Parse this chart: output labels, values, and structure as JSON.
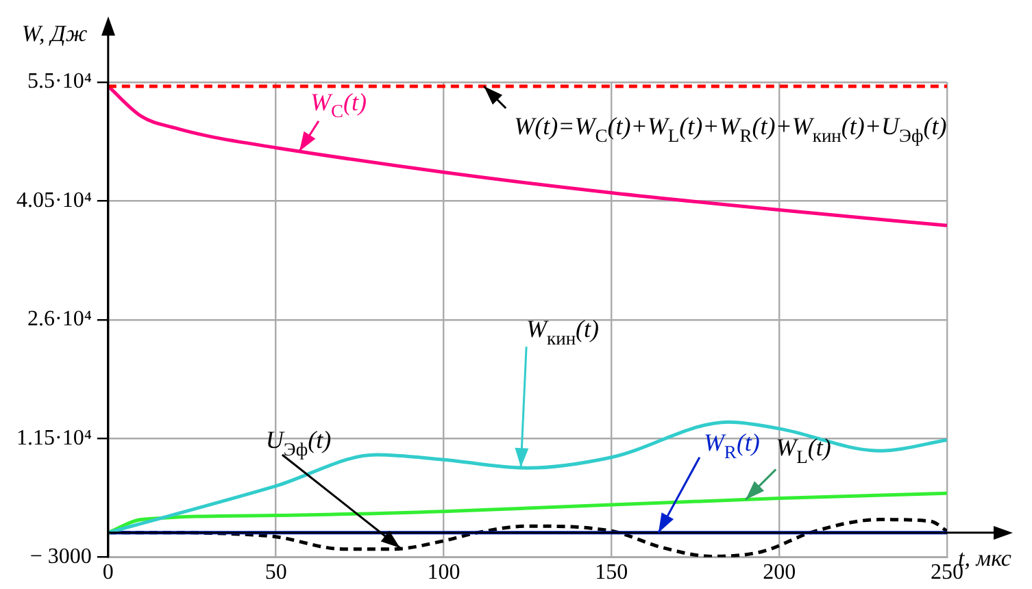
{
  "chart_data": {
    "type": "line",
    "xlabel": "t, мкс",
    "ylabel": "W, Дж",
    "xlim": [
      0,
      250
    ],
    "ylim": [
      -3000,
      55000
    ],
    "xticks": [
      0,
      50,
      100,
      150,
      200,
      250
    ],
    "yticks": [
      {
        "value": -3000,
        "label": "− 3000"
      },
      {
        "value": 11500,
        "label": "1.15·10⁴"
      },
      {
        "value": 26000,
        "label": "2.6·10⁴"
      },
      {
        "value": 40500,
        "label": "4.05·10⁴"
      },
      {
        "value": 55000,
        "label": "5.5·10⁴"
      }
    ],
    "grid": true,
    "legend": false,
    "marker": "none",
    "series": [
      {
        "name": "W(t)=W$_{C}$(t)+W$_{L}$(t)+W$_{R}$(t)+W$_{кин}$(t)+U$_{Эф}$(t)",
        "color": "#ff0000",
        "line_style": "dashed",
        "x": [
          0,
          250
        ],
        "values": [
          54500,
          54500
        ]
      },
      {
        "name": "W$_{C}$(t)",
        "color": "#ff0080",
        "line_style": "solid",
        "x": [
          0,
          10,
          20,
          30,
          50,
          100,
          150,
          200,
          250
        ],
        "values": [
          54500,
          50800,
          49400,
          48400,
          47000,
          44000,
          41500,
          39400,
          37500
        ]
      },
      {
        "name": "W$_{кин}$(t)",
        "color": "#33cccc",
        "line_style": "solid",
        "x": [
          0,
          50,
          80,
          100,
          125,
          150,
          185,
          200,
          230,
          250
        ],
        "values": [
          0,
          5700,
          9500,
          8900,
          7900,
          9200,
          13500,
          12700,
          10000,
          11300
        ]
      },
      {
        "name": "W$_{L}$(t)",
        "color": "#33ee33",
        "line_style": "solid",
        "x": [
          0,
          10,
          50,
          100,
          150,
          200,
          250
        ],
        "values": [
          0,
          1600,
          2100,
          2600,
          3400,
          4200,
          4800
        ]
      },
      {
        "name": "W$_{R}$(t)",
        "color": "#0022cc",
        "line_style": "solid",
        "x": [
          0,
          250
        ],
        "values": [
          0,
          0
        ]
      },
      {
        "name": "U$_{Эф}$(t)",
        "color": "#000000",
        "line_style": "dashed",
        "x": [
          0,
          20,
          40,
          50,
          70,
          85,
          100,
          110,
          125,
          150,
          165,
          180,
          195,
          210,
          230,
          245,
          250
        ],
        "values": [
          0,
          0,
          -200,
          -500,
          -2000,
          -2000,
          -1000,
          0,
          800,
          200,
          -1800,
          -2900,
          -2300,
          100,
          1600,
          1400,
          200
        ]
      }
    ]
  }
}
